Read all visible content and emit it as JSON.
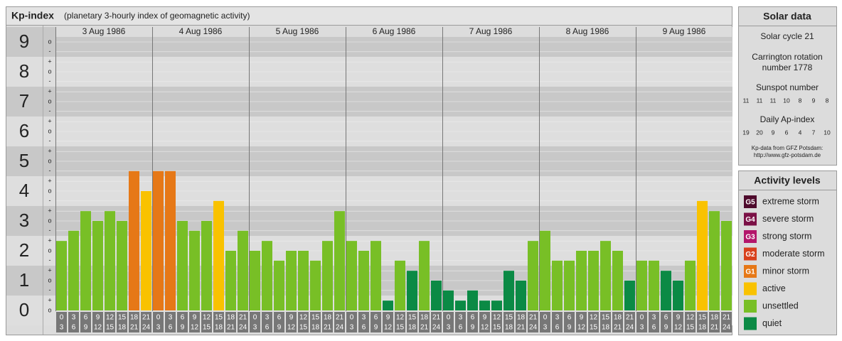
{
  "chart_data": {
    "type": "bar",
    "title": "Kp-index",
    "subtitle": "(planetary 3-hourly index of geomagnetic activity)",
    "ylim": [
      -0.5,
      9.5
    ],
    "yticks": [
      0,
      1,
      2,
      3,
      4,
      5,
      6,
      7,
      8,
      9
    ],
    "minor_ticks": [
      {
        "value": 9,
        "label": "o"
      },
      {
        "value": 8.67,
        "label": "-"
      },
      {
        "value": 8.33,
        "label": "+"
      },
      {
        "value": 8,
        "label": "o"
      },
      {
        "value": 7.67,
        "label": "-"
      },
      {
        "value": 7.33,
        "label": "+"
      },
      {
        "value": 7,
        "label": "o"
      },
      {
        "value": 6.67,
        "label": "-"
      },
      {
        "value": 6.33,
        "label": "+"
      },
      {
        "value": 6,
        "label": "o"
      },
      {
        "value": 5.67,
        "label": "-"
      },
      {
        "value": 5.33,
        "label": "+"
      },
      {
        "value": 5,
        "label": "o"
      },
      {
        "value": 4.67,
        "label": "-"
      },
      {
        "value": 4.33,
        "label": "+"
      },
      {
        "value": 4,
        "label": "o"
      },
      {
        "value": 3.67,
        "label": "-"
      },
      {
        "value": 3.33,
        "label": "+"
      },
      {
        "value": 3,
        "label": "o"
      },
      {
        "value": 2.67,
        "label": "-"
      },
      {
        "value": 2.33,
        "label": "+"
      },
      {
        "value": 2,
        "label": "o"
      },
      {
        "value": 1.67,
        "label": "-"
      },
      {
        "value": 1.33,
        "label": "+"
      },
      {
        "value": 1,
        "label": "o"
      },
      {
        "value": 0.67,
        "label": "-"
      },
      {
        "value": 0.33,
        "label": "+"
      },
      {
        "value": 0,
        "label": "o"
      }
    ],
    "intervals": [
      {
        "start": "0",
        "end": "3"
      },
      {
        "start": "3",
        "end": "6"
      },
      {
        "start": "6",
        "end": "9"
      },
      {
        "start": "9",
        "end": "12"
      },
      {
        "start": "12",
        "end": "15"
      },
      {
        "start": "15",
        "end": "18"
      },
      {
        "start": "18",
        "end": "21"
      },
      {
        "start": "21",
        "end": "24"
      }
    ],
    "days": [
      {
        "date": "3 Aug 1986",
        "values": [
          2.33,
          2.67,
          3.33,
          3,
          3.33,
          3,
          4.67,
          4
        ],
        "colors": [
          "#78bf26",
          "#78bf26",
          "#78bf26",
          "#78bf26",
          "#78bf26",
          "#78bf26",
          "#e67817",
          "#f9c200"
        ]
      },
      {
        "date": "4 Aug 1986",
        "values": [
          4.67,
          4.67,
          3,
          2.67,
          3,
          3.67,
          2,
          2.67
        ],
        "colors": [
          "#e67817",
          "#e67817",
          "#78bf26",
          "#78bf26",
          "#78bf26",
          "#f9c200",
          "#78bf26",
          "#78bf26"
        ]
      },
      {
        "date": "5 Aug 1986",
        "values": [
          2,
          2.33,
          1.67,
          2,
          2,
          1.67,
          2.33,
          3.33
        ],
        "colors": [
          "#78bf26",
          "#78bf26",
          "#78bf26",
          "#78bf26",
          "#78bf26",
          "#78bf26",
          "#78bf26",
          "#78bf26"
        ]
      },
      {
        "date": "6 Aug 1986",
        "values": [
          2.33,
          2,
          2.33,
          0.33,
          1.67,
          1.33,
          2.33,
          1
        ],
        "colors": [
          "#78bf26",
          "#78bf26",
          "#78bf26",
          "#0b8a45",
          "#78bf26",
          "#0b8a45",
          "#78bf26",
          "#0b8a45"
        ]
      },
      {
        "date": "7 Aug 1986",
        "values": [
          0.67,
          0.33,
          0.67,
          0.33,
          0.33,
          1.33,
          1,
          2.33
        ],
        "colors": [
          "#0b8a45",
          "#0b8a45",
          "#0b8a45",
          "#0b8a45",
          "#0b8a45",
          "#0b8a45",
          "#0b8a45",
          "#78bf26"
        ]
      },
      {
        "date": "8 Aug 1986",
        "values": [
          2.67,
          1.67,
          1.67,
          2,
          2,
          2.33,
          2,
          1
        ],
        "colors": [
          "#78bf26",
          "#78bf26",
          "#78bf26",
          "#78bf26",
          "#78bf26",
          "#78bf26",
          "#78bf26",
          "#0b8a45"
        ]
      },
      {
        "date": "9 Aug 1986",
        "values": [
          1.67,
          1.67,
          1.33,
          1,
          1.67,
          3.67,
          3.33,
          3
        ],
        "colors": [
          "#78bf26",
          "#78bf26",
          "#0b8a45",
          "#0b8a45",
          "#78bf26",
          "#f9c200",
          "#78bf26",
          "#78bf26"
        ]
      }
    ],
    "solar": {
      "title": "Solar data",
      "cycle": "Solar cycle 21",
      "carrington_1": "Carrington rotation",
      "carrington_2": "number 1778",
      "sunspot_title": "Sunspot number",
      "sunspots": [
        11,
        11,
        11,
        10,
        8,
        9,
        8
      ],
      "ap_title": "Daily Ap-index",
      "ap": [
        19,
        20,
        9,
        6,
        4,
        7,
        10
      ],
      "source_1": "Kp-data from GFZ Potsdam:",
      "source_2": "http://www.gfz-potsdam.de"
    },
    "legend": {
      "title": "Activity levels",
      "items": [
        {
          "badge": "G5",
          "name": "extreme storm",
          "color": "#4e0a2c"
        },
        {
          "badge": "G4",
          "name": "severe storm",
          "color": "#7b1146"
        },
        {
          "badge": "G3",
          "name": "strong storm",
          "color": "#b3166b"
        },
        {
          "badge": "G2",
          "name": "moderate storm",
          "color": "#d8401c"
        },
        {
          "badge": "G1",
          "name": "minor storm",
          "color": "#e67817"
        },
        {
          "name": "active",
          "color": "#f9c200"
        },
        {
          "name": "unsettled",
          "color": "#78bf26"
        },
        {
          "name": "quiet",
          "color": "#0b8a45"
        }
      ]
    }
  }
}
